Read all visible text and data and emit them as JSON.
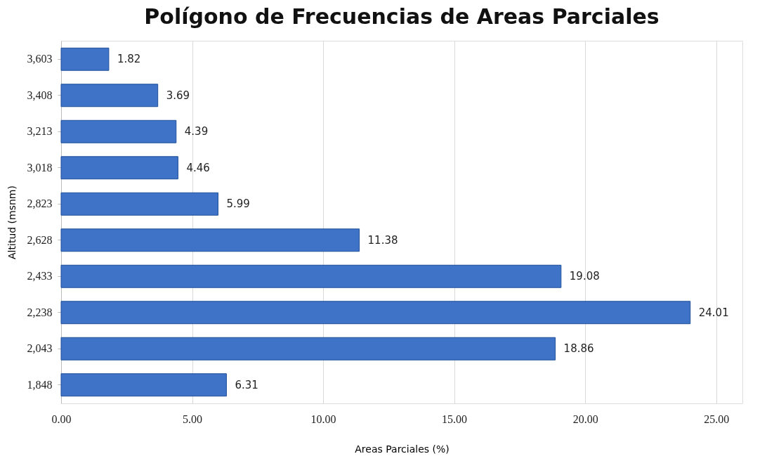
{
  "chart_data": {
    "type": "bar",
    "orientation": "horizontal",
    "title": "Polígono de Frecuencias de Areas Parciales",
    "xlabel": "Areas Parciales (%)",
    "ylabel": "Altitud (msnm)",
    "categories": [
      "3,603",
      "3,408",
      "3,213",
      "3,018",
      "2,823",
      "2,628",
      "2,433",
      "2,238",
      "2,043",
      "1,848"
    ],
    "values": [
      1.82,
      3.69,
      4.39,
      4.46,
      5.99,
      11.38,
      19.08,
      24.01,
      18.86,
      6.31
    ],
    "color": "#3f73c8",
    "data_labels": true,
    "grid": "x",
    "xlim": [
      0,
      26
    ],
    "xticks": [
      {
        "value": 0,
        "label": "0.00"
      },
      {
        "value": 5,
        "label": "5.00"
      },
      {
        "value": 10,
        "label": "10.00"
      },
      {
        "value": 15,
        "label": "15.00"
      },
      {
        "value": 20,
        "label": "20.00"
      },
      {
        "value": 25,
        "label": "25.00"
      }
    ]
  }
}
